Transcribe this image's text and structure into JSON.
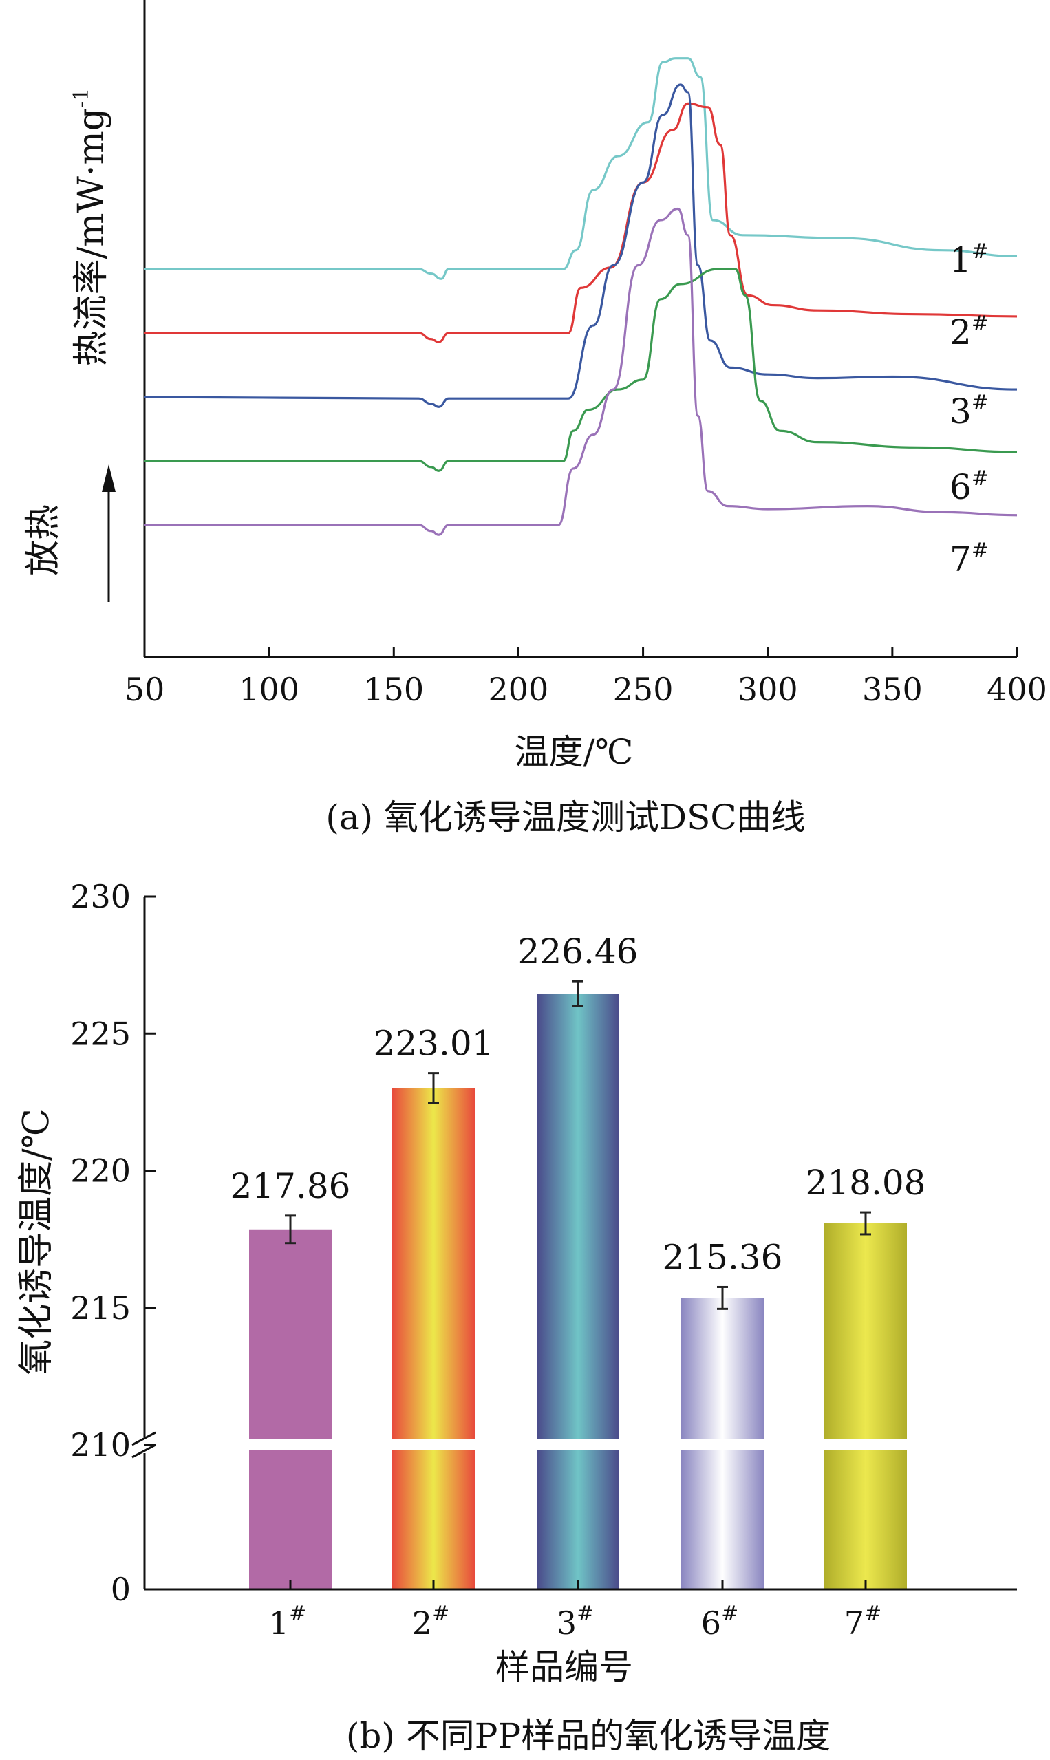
{
  "chart_data": [
    {
      "type": "line",
      "caption": "(a) 氧化诱导温度测试DSC曲线",
      "xlabel": "温度/℃",
      "ylabel": "热流率/mW·mg",
      "ylabel_sup": "-1",
      "exo_label": "放热",
      "xlim": [
        50,
        400
      ],
      "xticks": [
        "50",
        "100",
        "150",
        "200",
        "250",
        "300",
        "350",
        "400"
      ],
      "y_scale": "arbitrary (stacked curves, no y tick values)",
      "grid": false,
      "series": [
        {
          "name": "1",
          "name_sup": "#",
          "color": "#76c8c8",
          "points": [
            [
              50,
              2.55
            ],
            [
              160,
              2.55
            ],
            [
              165,
              2.49
            ],
            [
              169,
              2.42
            ],
            [
              172,
              2.55
            ],
            [
              218,
              2.55
            ],
            [
              223,
              2.8
            ],
            [
              230,
              3.6
            ],
            [
              240,
              4.05
            ],
            [
              252,
              4.5
            ],
            [
              258,
              5.3
            ],
            [
              263,
              5.35
            ],
            [
              268,
              5.35
            ],
            [
              273,
              5.1
            ],
            [
              278,
              3.2
            ],
            [
              290,
              3.0
            ],
            [
              330,
              2.96
            ],
            [
              370,
              2.8
            ],
            [
              400,
              2.72
            ]
          ]
        },
        {
          "name": "2",
          "name_sup": "#",
          "color": "#e03838",
          "points": [
            [
              50,
              1.7
            ],
            [
              160,
              1.7
            ],
            [
              165,
              1.62
            ],
            [
              168,
              1.58
            ],
            [
              172,
              1.7
            ],
            [
              220,
              1.7
            ],
            [
              225,
              2.3
            ],
            [
              237,
              2.57
            ],
            [
              250,
              3.7
            ],
            [
              262,
              4.4
            ],
            [
              268,
              4.75
            ],
            [
              276,
              4.7
            ],
            [
              281,
              4.2
            ],
            [
              285,
              3.0
            ],
            [
              292,
              2.2
            ],
            [
              302,
              2.07
            ],
            [
              320,
              2.0
            ],
            [
              360,
              1.95
            ],
            [
              400,
              1.92
            ]
          ]
        },
        {
          "name": "3",
          "name_sup": "#",
          "color": "#3a58a0",
          "points": [
            [
              50,
              0.85
            ],
            [
              160,
              0.83
            ],
            [
              165,
              0.76
            ],
            [
              168,
              0.72
            ],
            [
              172,
              0.83
            ],
            [
              220,
              0.83
            ],
            [
              230,
              1.8
            ],
            [
              238,
              2.6
            ],
            [
              250,
              3.7
            ],
            [
              258,
              4.6
            ],
            [
              265,
              5.0
            ],
            [
              268,
              4.9
            ],
            [
              272,
              2.6
            ],
            [
              277,
              1.6
            ],
            [
              285,
              1.24
            ],
            [
              300,
              1.15
            ],
            [
              320,
              1.1
            ],
            [
              350,
              1.12
            ],
            [
              400,
              0.95
            ]
          ]
        },
        {
          "name": "6",
          "name_sup": "#",
          "color": "#3a9a50",
          "points": [
            [
              50,
              0.0
            ],
            [
              160,
              0.0
            ],
            [
              165,
              -0.08
            ],
            [
              168,
              -0.13
            ],
            [
              172,
              0.0
            ],
            [
              218,
              0.0
            ],
            [
              222,
              0.4
            ],
            [
              228,
              0.68
            ],
            [
              240,
              0.95
            ],
            [
              250,
              1.08
            ],
            [
              257,
              2.15
            ],
            [
              265,
              2.35
            ],
            [
              280,
              2.55
            ],
            [
              287,
              2.55
            ],
            [
              291,
              2.2
            ],
            [
              297,
              0.8
            ],
            [
              305,
              0.4
            ],
            [
              320,
              0.25
            ],
            [
              360,
              0.18
            ],
            [
              400,
              0.12
            ]
          ]
        },
        {
          "name": "7",
          "name_sup": "#",
          "color": "#9a72b8",
          "points": [
            [
              50,
              -0.85
            ],
            [
              160,
              -0.85
            ],
            [
              165,
              -0.93
            ],
            [
              168,
              -0.98
            ],
            [
              172,
              -0.85
            ],
            [
              216,
              -0.85
            ],
            [
              222,
              -0.1
            ],
            [
              230,
              0.35
            ],
            [
              238,
              0.95
            ],
            [
              248,
              2.6
            ],
            [
              257,
              3.2
            ],
            [
              264,
              3.35
            ],
            [
              268,
              3.0
            ],
            [
              272,
              0.6
            ],
            [
              276,
              -0.4
            ],
            [
              284,
              -0.6
            ],
            [
              300,
              -0.64
            ],
            [
              340,
              -0.6
            ],
            [
              370,
              -0.68
            ],
            [
              400,
              -0.72
            ]
          ]
        }
      ]
    },
    {
      "type": "bar",
      "caption": "(b) 不同PP样品的氧化诱导温度",
      "xlabel": "样品编号",
      "ylabel": "氧化诱导温度/℃",
      "y_axis_break": [
        0,
        210
      ],
      "yticks": [
        "0",
        "210",
        "215",
        "220",
        "225",
        "230"
      ],
      "ylim": [
        210,
        230
      ],
      "grid": false,
      "categories": [
        "1",
        "2",
        "3",
        "6",
        "7"
      ],
      "category_sup": "#",
      "values": [
        217.86,
        223.01,
        226.46,
        215.36,
        218.08
      ],
      "value_labels": [
        "217.86",
        "223.01",
        "226.46",
        "215.36",
        "218.08"
      ],
      "error": [
        0.5,
        0.55,
        0.45,
        0.4,
        0.4
      ],
      "bar_colors": [
        [
          "#b26aa6",
          "#b26aa6"
        ],
        [
          "#e84a3c",
          "#ece84a"
        ],
        [
          "#4a4a8a",
          "#70c4c6"
        ],
        [
          "#8a86c0",
          "#ffffff"
        ],
        [
          "#b0ae2a",
          "#ece84e"
        ]
      ]
    }
  ]
}
